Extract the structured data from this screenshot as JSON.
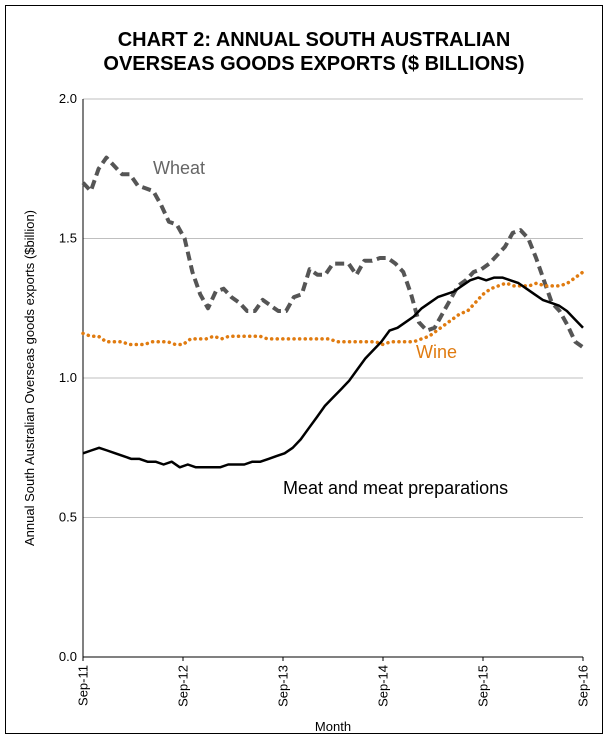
{
  "chart_data": {
    "type": "line",
    "title_lines": [
      "CHART 2: ANNUAL SOUTH AUSTRALIAN",
      "OVERSEAS GOODS EXPORTS ($ BILLIONS)"
    ],
    "xlabel": "Month",
    "ylabel": "Annual South Australian Overseas  goods exports ($billion)",
    "ylim": [
      0,
      2.0
    ],
    "yticks": [
      "0.0",
      "0.5",
      "1.0",
      "1.5",
      "2.0"
    ],
    "xticks": [
      "Sep-11",
      "Sep-12",
      "Sep-13",
      "Sep-14",
      "Sep-15",
      "Sep-16"
    ],
    "grid": true,
    "series": [
      {
        "name": "Wheat",
        "style": "dashed",
        "color": "#555555",
        "values": [
          1.7,
          1.67,
          1.75,
          1.79,
          1.76,
          1.73,
          1.73,
          1.69,
          1.68,
          1.67,
          1.62,
          1.56,
          1.55,
          1.5,
          1.38,
          1.3,
          1.25,
          1.31,
          1.32,
          1.29,
          1.27,
          1.24,
          1.24,
          1.28,
          1.26,
          1.24,
          1.24,
          1.29,
          1.3,
          1.39,
          1.37,
          1.37,
          1.41,
          1.41,
          1.41,
          1.37,
          1.42,
          1.42,
          1.43,
          1.43,
          1.41,
          1.38,
          1.3,
          1.2,
          1.17,
          1.18,
          1.23,
          1.28,
          1.33,
          1.35,
          1.38,
          1.39,
          1.41,
          1.44,
          1.47,
          1.52,
          1.53,
          1.5,
          1.43,
          1.35,
          1.27,
          1.24,
          1.19,
          1.13,
          1.11
        ]
      },
      {
        "name": "Wine",
        "style": "dotted",
        "color": "#e07b10",
        "values": [
          1.16,
          1.15,
          1.15,
          1.13,
          1.13,
          1.13,
          1.12,
          1.12,
          1.12,
          1.13,
          1.13,
          1.13,
          1.12,
          1.12,
          1.14,
          1.14,
          1.14,
          1.15,
          1.14,
          1.15,
          1.15,
          1.15,
          1.15,
          1.15,
          1.14,
          1.14,
          1.14,
          1.14,
          1.14,
          1.14,
          1.14,
          1.14,
          1.14,
          1.13,
          1.13,
          1.13,
          1.13,
          1.13,
          1.13,
          1.12,
          1.13,
          1.13,
          1.13,
          1.13,
          1.14,
          1.15,
          1.17,
          1.19,
          1.21,
          1.23,
          1.24,
          1.27,
          1.3,
          1.32,
          1.33,
          1.34,
          1.33,
          1.33,
          1.33,
          1.34,
          1.33,
          1.33,
          1.33,
          1.34,
          1.36,
          1.38
        ]
      },
      {
        "name": "Meat and meat preparations",
        "style": "solid",
        "color": "#000000",
        "values": [
          0.73,
          0.74,
          0.75,
          0.74,
          0.73,
          0.72,
          0.71,
          0.71,
          0.7,
          0.7,
          0.69,
          0.7,
          0.68,
          0.69,
          0.68,
          0.68,
          0.68,
          0.68,
          0.69,
          0.69,
          0.69,
          0.7,
          0.7,
          0.71,
          0.72,
          0.73,
          0.75,
          0.78,
          0.82,
          0.86,
          0.9,
          0.93,
          0.96,
          0.99,
          1.03,
          1.07,
          1.1,
          1.13,
          1.17,
          1.18,
          1.2,
          1.22,
          1.25,
          1.27,
          1.29,
          1.3,
          1.31,
          1.33,
          1.35,
          1.36,
          1.35,
          1.36,
          1.36,
          1.35,
          1.34,
          1.32,
          1.3,
          1.28,
          1.27,
          1.26,
          1.24,
          1.21,
          1.18
        ]
      }
    ],
    "annotations": [
      {
        "text": "Wheat",
        "color": "#666666"
      },
      {
        "text": "Wine",
        "color": "#e07b10"
      },
      {
        "text": "Meat and meat preparations",
        "color": "#000000"
      }
    ]
  }
}
